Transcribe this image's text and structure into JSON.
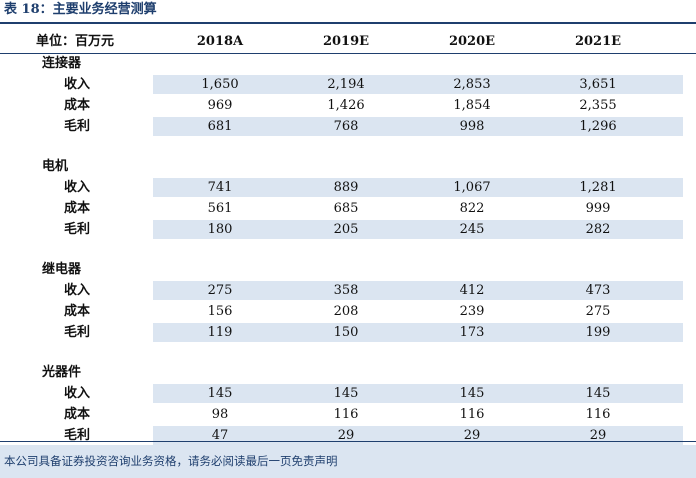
{
  "title": "表 18：主要业务经营测算",
  "header": {
    "unit": "单位：百万元",
    "columns": [
      "2018A",
      "2019E",
      "2020E",
      "2021E"
    ]
  },
  "sections": [
    {
      "name": "连接器",
      "rows": [
        {
          "label": "收入",
          "values": [
            "1,650",
            "2,194",
            "2,853",
            "3,651"
          ]
        },
        {
          "label": "成本",
          "values": [
            "969",
            "1,426",
            "1,854",
            "2,355"
          ]
        },
        {
          "label": "毛利",
          "values": [
            "681",
            "768",
            "998",
            "1,296"
          ]
        }
      ]
    },
    {
      "name": "电机",
      "rows": [
        {
          "label": "收入",
          "values": [
            "741",
            "889",
            "1,067",
            "1,281"
          ]
        },
        {
          "label": "成本",
          "values": [
            "561",
            "685",
            "822",
            "999"
          ]
        },
        {
          "label": "毛利",
          "values": [
            "180",
            "205",
            "245",
            "282"
          ]
        }
      ]
    },
    {
      "name": "继电器",
      "rows": [
        {
          "label": "收入",
          "values": [
            "275",
            "358",
            "412",
            "473"
          ]
        },
        {
          "label": "成本",
          "values": [
            "156",
            "208",
            "239",
            "275"
          ]
        },
        {
          "label": "毛利",
          "values": [
            "119",
            "150",
            "173",
            "199"
          ]
        }
      ]
    },
    {
      "name": "光器件",
      "rows": [
        {
          "label": "收入",
          "values": [
            "145",
            "145",
            "145",
            "145"
          ]
        },
        {
          "label": "成本",
          "values": [
            "98",
            "116",
            "116",
            "116"
          ]
        },
        {
          "label": "毛利",
          "values": [
            "47",
            "29",
            "29",
            "29"
          ]
        }
      ]
    }
  ],
  "footer": "本公司具备证券投资咨询业务资格，请务必阅读最后一页免责声明",
  "colors": {
    "accent": "#1f3f6e",
    "band": "#dbe5f1"
  }
}
